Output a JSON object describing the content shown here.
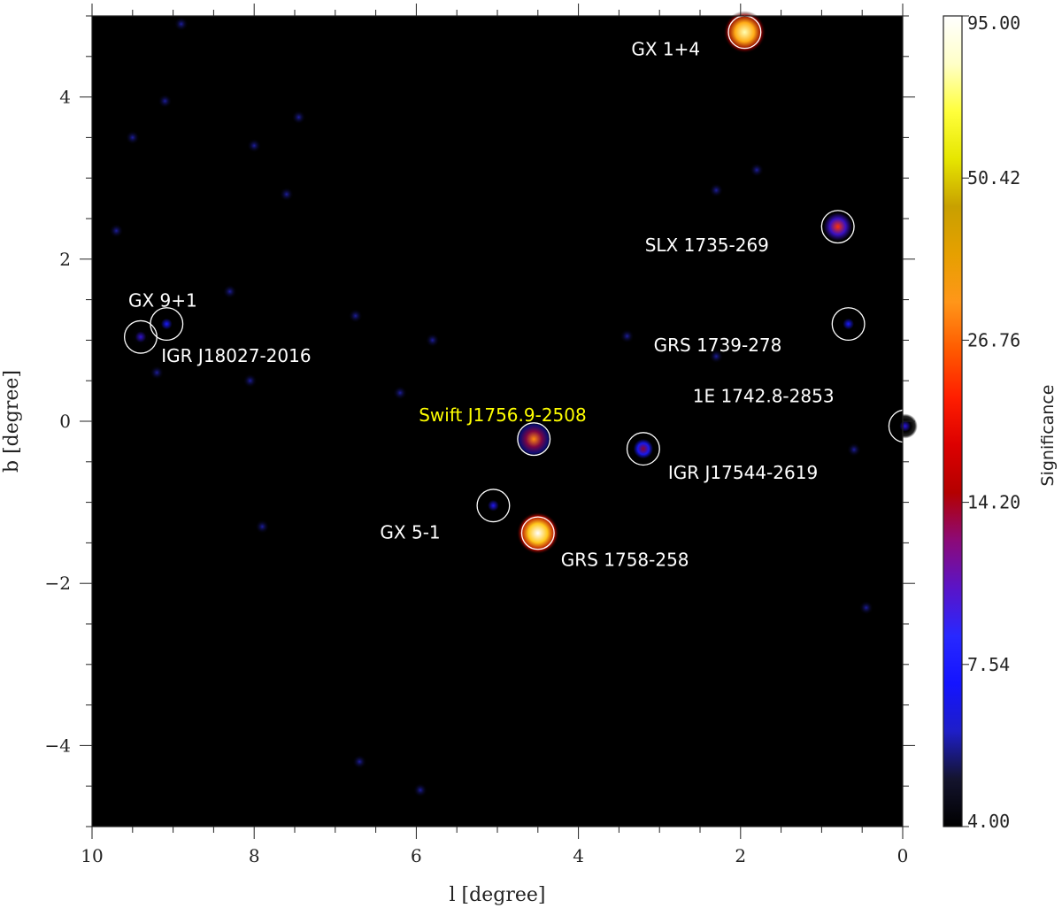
{
  "chart_data": {
    "type": "heatmap",
    "xlabel": "l [degree]",
    "ylabel": "b [degree]",
    "xlim": [
      10,
      0
    ],
    "ylim": [
      -5,
      5
    ],
    "x_ticks": [
      {
        "value": 10,
        "label": "10"
      },
      {
        "value": 8,
        "label": "8"
      },
      {
        "value": 6,
        "label": "6"
      },
      {
        "value": 4,
        "label": "4"
      },
      {
        "value": 2,
        "label": "2"
      },
      {
        "value": 0,
        "label": "0"
      }
    ],
    "y_ticks": [
      {
        "value": 4,
        "label": "4"
      },
      {
        "value": 2,
        "label": "2"
      },
      {
        "value": 0,
        "label": "0"
      },
      {
        "value": -2,
        "label": "−2"
      },
      {
        "value": -4,
        "label": "−4"
      }
    ],
    "background_color": "#000000",
    "colorbar": {
      "title": "Significance",
      "ticks": [
        "95.00",
        "50.42",
        "26.76",
        "14.20",
        "7.54",
        "4.00"
      ],
      "colors": [
        "#000000",
        "#14142e",
        "#1e1ec8",
        "#1414ff",
        "#2828ff",
        "#5a14c8",
        "#8c0a78",
        "#b40000",
        "#dc0000",
        "#ff1e00",
        "#ff5a00",
        "#ff9619",
        "#e6a000",
        "#c8a000",
        "#e6e600",
        "#ffff3c",
        "#ffffc8",
        "#ffffff"
      ]
    },
    "sources": [
      {
        "name": "GX 1+4",
        "l": 1.95,
        "b": 4.8,
        "sig": 80,
        "color": "#ffffff",
        "circle": true
      },
      {
        "name": "SLX 1735-269",
        "l": 0.8,
        "b": 2.4,
        "sig": 22,
        "color": "#ffffff",
        "circle": true
      },
      {
        "name": "GX 9+1",
        "l": 9.4,
        "b": 1.04,
        "sig": 9,
        "color": "#ffffff",
        "circle": true
      },
      {
        "name": "IGR J18027-2016",
        "l": 9.08,
        "b": 1.2,
        "sig": 6,
        "color": "#ffffff",
        "circle": true
      },
      {
        "name": "GRS 1739-278",
        "l": 0.67,
        "b": 1.2,
        "sig": 6,
        "color": "#ffffff",
        "circle": true
      },
      {
        "name": "Swift J1756.9-2508",
        "l": 4.55,
        "b": -0.22,
        "sig": 28,
        "color": "#ffff00",
        "circle": true
      },
      {
        "name": "1E 1742.8-2853",
        "l": -0.03,
        "b": -0.06,
        "sig": 8,
        "color": "#ffffff",
        "circle": true
      },
      {
        "name": "IGR J17544-2619",
        "l": 3.2,
        "b": -0.34,
        "sig": 13,
        "color": "#ffffff",
        "circle": true
      },
      {
        "name": "GX 5-1",
        "l": 5.05,
        "b": -1.04,
        "sig": 7,
        "color": "#ffffff",
        "circle": true
      },
      {
        "name": "GRS 1758-258",
        "l": 4.5,
        "b": -1.38,
        "sig": 95,
        "color": "#ffffff",
        "circle": true
      }
    ],
    "faint_spots": [
      [
        9.7,
        2.35
      ],
      [
        9.1,
        3.95
      ],
      [
        9.5,
        3.5
      ],
      [
        8.0,
        3.4
      ],
      [
        7.6,
        2.8
      ],
      [
        8.3,
        1.6
      ],
      [
        8.05,
        0.5
      ],
      [
        6.75,
        1.3
      ],
      [
        7.45,
        3.75
      ],
      [
        8.9,
        4.9
      ],
      [
        3.4,
        1.05
      ],
      [
        2.3,
        0.8
      ],
      [
        2.3,
        2.85
      ],
      [
        1.8,
        3.1
      ],
      [
        0.6,
        -0.35
      ],
      [
        7.9,
        -1.3
      ],
      [
        6.2,
        0.35
      ],
      [
        5.8,
        1.0
      ],
      [
        6.7,
        -4.2
      ],
      [
        0.45,
        -2.3
      ],
      [
        9.2,
        0.6
      ],
      [
        5.95,
        -4.55
      ]
    ]
  }
}
